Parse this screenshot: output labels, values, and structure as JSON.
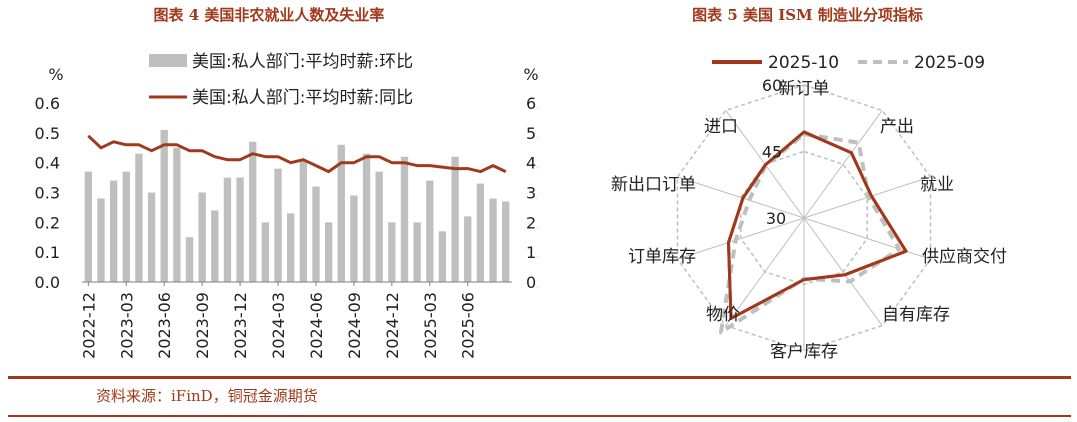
{
  "colors": {
    "accent": "#A0391B",
    "bar": "#BFBFBF",
    "line": "#A0391B",
    "dashed": "#BFBFBF",
    "grid": "#BFBFBF"
  },
  "left_title": "图表 4 美国非农就业人数及失业率",
  "right_title": "图表 5 美国 ISM 制造业分项指标",
  "source": "资料来源：iFinD，铜冠金源期货",
  "chart_data": [
    {
      "type": "bar",
      "left_unit": "%",
      "right_unit": "%",
      "ylim": [
        0,
        0.6
      ],
      "y2lim": [
        0,
        6.0
      ],
      "y_ticks": [
        "0.0",
        "0.1",
        "0.2",
        "0.3",
        "0.4",
        "0.5",
        "0.6"
      ],
      "y2_ticks": [
        "0.0",
        "1.0",
        "2.0",
        "3.0",
        "4.0",
        "5.0",
        "6.0"
      ],
      "x_tick_labels": [
        "2022-12",
        "2023-03",
        "2023-06",
        "2023-09",
        "2023-12",
        "2024-03",
        "2024-06",
        "2024-09",
        "2024-12",
        "2025-03",
        "2025-06"
      ],
      "categories": [
        "2022-12",
        "2023-01",
        "2023-02",
        "2023-03",
        "2023-04",
        "2023-05",
        "2023-06",
        "2023-07",
        "2023-08",
        "2023-09",
        "2023-10",
        "2023-11",
        "2023-12",
        "2024-01",
        "2024-02",
        "2024-03",
        "2024-04",
        "2024-05",
        "2024-06",
        "2024-07",
        "2024-08",
        "2024-09",
        "2024-10",
        "2024-11",
        "2024-12",
        "2025-01",
        "2025-02",
        "2025-03",
        "2025-04",
        "2025-05",
        "2025-06",
        "2025-07",
        "2025-08",
        "2025-09"
      ],
      "series": [
        {
          "name": "美国:私人部门:平均时薪:环比",
          "axis": "left",
          "kind": "bar",
          "values": [
            0.37,
            0.28,
            0.34,
            0.37,
            0.43,
            0.3,
            0.51,
            0.45,
            0.15,
            0.3,
            0.24,
            0.35,
            0.35,
            0.47,
            0.2,
            0.38,
            0.23,
            0.41,
            0.32,
            0.2,
            0.46,
            0.29,
            0.43,
            0.37,
            0.2,
            0.42,
            0.2,
            0.34,
            0.17,
            0.42,
            0.22,
            0.33,
            0.28,
            0.27
          ]
        },
        {
          "name": "美国:私人部门:平均时薪:同比",
          "axis": "right",
          "kind": "line",
          "values": [
            4.9,
            4.5,
            4.7,
            4.6,
            4.6,
            4.4,
            4.6,
            4.6,
            4.4,
            4.4,
            4.2,
            4.1,
            4.1,
            4.3,
            4.2,
            4.2,
            4.0,
            4.1,
            3.9,
            3.7,
            4.0,
            4.0,
            4.2,
            4.2,
            4.0,
            4.0,
            3.9,
            3.9,
            3.85,
            3.8,
            3.8,
            3.7,
            3.9,
            3.7
          ]
        }
      ]
    },
    {
      "type": "radar",
      "axes": [
        "新订单",
        "产出",
        "就业",
        "供应商交付",
        "自有库存",
        "客户库存",
        "物价",
        "订单库存",
        "新出口订单",
        "进口"
      ],
      "rlim": [
        30,
        60
      ],
      "r_ticks": [
        "30",
        "45",
        "60"
      ],
      "series": [
        {
          "name": "2025-10",
          "style": "solid",
          "values": [
            49.4,
            48.2,
            46.0,
            54.2,
            45.8,
            43.9,
            58.0,
            47.9,
            44.5,
            44.8
          ]
        },
        {
          "name": "2025-09",
          "style": "dashed",
          "values": [
            48.9,
            51.0,
            45.3,
            52.6,
            47.7,
            43.7,
            61.9,
            46.2,
            43.0,
            44.7
          ]
        }
      ]
    }
  ]
}
